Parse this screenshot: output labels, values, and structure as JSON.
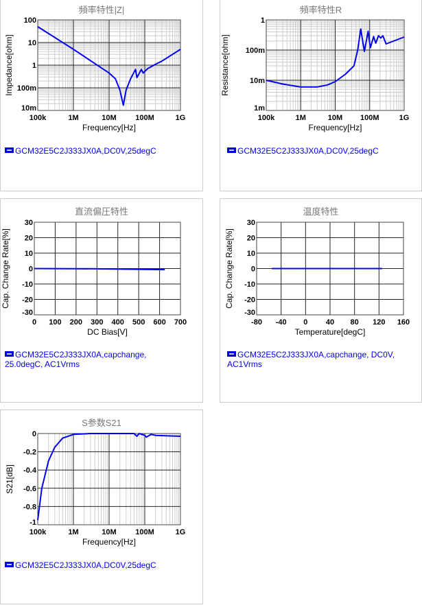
{
  "chart_data": [
    {
      "type": "line",
      "title": "頻率特性|Z|",
      "xlabel": "Frequency[Hz]",
      "ylabel": "Impedance[ohm]",
      "xscale": "log",
      "yscale": "log",
      "xlim": [
        100000,
        1000000000
      ],
      "ylim": [
        0.01,
        100
      ],
      "xticks": [
        "100k",
        "1M",
        "10M",
        "100M",
        "1G"
      ],
      "yticks": [
        "10m",
        "100m",
        "1",
        "10",
        "100"
      ],
      "series": [
        {
          "name": "GCM32E5C2J333JX0A,DC0V,25degC",
          "color": "#0000ee",
          "x": [
            100000.0,
            1000000.0,
            10000000.0,
            15000000.0,
            20000000.0,
            25000000.0,
            30000000.0,
            40000000.0,
            55000000.0,
            60000000.0,
            80000000.0,
            90000000.0,
            120000000.0,
            150000000.0,
            200000000.0,
            300000000.0,
            1000000000.0
          ],
          "y": [
            50,
            5,
            0.45,
            0.25,
            0.08,
            0.017,
            0.08,
            0.25,
            0.65,
            0.28,
            0.65,
            0.45,
            0.7,
            0.85,
            1.1,
            1.5,
            5
          ]
        }
      ],
      "legend": "GCM32E5C2J333JX0A,DC0V,25degC"
    },
    {
      "type": "line",
      "title": "頻率特性R",
      "xlabel": "Frequency[Hz]",
      "ylabel": "Resistance[ohm]",
      "xscale": "log",
      "yscale": "log",
      "xlim": [
        100000,
        1000000000
      ],
      "ylim": [
        0.001,
        1
      ],
      "xticks": [
        "100k",
        "1M",
        "10M",
        "100M",
        "1G"
      ],
      "yticks": [
        "1m",
        "10m",
        "100m",
        "1"
      ],
      "series": [
        {
          "name": "GCM32E5C2J333JX0A,DC0V,25degC",
          "color": "#0000ee",
          "x": [
            100000.0,
            300000.0,
            1000000.0,
            3000000.0,
            6000000.0,
            10000000.0,
            20000000.0,
            35000000.0,
            45000000.0,
            55000000.0,
            70000000.0,
            90000000.0,
            105000000.0,
            130000000.0,
            150000000.0,
            180000000.0,
            210000000.0,
            240000000.0,
            300000000.0,
            1000000000.0
          ],
          "y": [
            0.01,
            0.0075,
            0.006,
            0.006,
            0.007,
            0.009,
            0.016,
            0.03,
            0.1,
            0.5,
            0.09,
            0.42,
            0.12,
            0.28,
            0.17,
            0.3,
            0.25,
            0.3,
            0.16,
            0.27
          ]
        }
      ],
      "legend": "GCM32E5C2J333JX0A,DC0V,25degC"
    },
    {
      "type": "line",
      "title": "直流偏圧特性",
      "xlabel": "DC Bias[V]",
      "ylabel": "Cap. Change Rate[%]",
      "xscale": "linear",
      "yscale": "linear",
      "xlim": [
        0,
        700
      ],
      "ylim": [
        -30,
        30
      ],
      "xticks": [
        "0",
        "100",
        "200",
        "300",
        "400",
        "500",
        "600",
        "700"
      ],
      "yticks": [
        "-30",
        "-20",
        "-10",
        "0",
        "10",
        "20",
        "30"
      ],
      "series": [
        {
          "name": "GCM32E5C2J333JX0A,capchange, 25.0degC, AC1Vrms",
          "color": "#0000ee",
          "x": [
            0,
            100,
            200,
            300,
            400,
            500,
            625
          ],
          "y": [
            0,
            -0.05,
            -0.1,
            -0.2,
            -0.35,
            -0.5,
            -0.7
          ]
        }
      ],
      "legend": "GCM32E5C2J333JX0A,capchange, 25.0degC, AC1Vrms"
    },
    {
      "type": "line",
      "title": "温度特性",
      "xlabel": "Temperature[degC]",
      "ylabel": "Cap. Change Rate[%]",
      "xscale": "linear",
      "yscale": "linear",
      "xlim": [
        -80,
        160
      ],
      "ylim": [
        -30,
        30
      ],
      "xticks": [
        "-80",
        "-40",
        "0",
        "40",
        "80",
        "120",
        "160"
      ],
      "yticks": [
        "-30",
        "-20",
        "-10",
        "0",
        "10",
        "20",
        "30"
      ],
      "series": [
        {
          "name": "GCM32E5C2J333JX0A,capchange, DC0V, AC1Vrms",
          "color": "#0000ee",
          "x": [
            -55,
            0,
            25,
            85,
            125
          ],
          "y": [
            0,
            0,
            0,
            0,
            0
          ]
        }
      ],
      "legend": "GCM32E5C2J333JX0A,capchange, DC0V, AC1Vrms"
    },
    {
      "type": "line",
      "title": "S参数S21",
      "xlabel": "Frequency[Hz]",
      "ylabel": "S21[dB]",
      "xscale": "log",
      "yscale": "linear",
      "xlim": [
        100000,
        1000000000
      ],
      "ylim": [
        -1,
        0
      ],
      "xticks": [
        "100k",
        "1M",
        "10M",
        "100M",
        "1G"
      ],
      "yticks": [
        "-1",
        "-0.8",
        "-0.6",
        "-0.4",
        "-0.2",
        "0"
      ],
      "series": [
        {
          "name": "GCM32E5C2J333JX0A,DC0V,25degC",
          "color": "#0000ee",
          "x": [
            100000.0,
            130000.0,
            200000.0,
            300000.0,
            500000.0,
            1000000.0,
            3000000.0,
            50000000.0,
            60000000.0,
            70000000.0,
            100000000.0,
            110000000.0,
            150000000.0,
            200000000.0,
            1000000000.0
          ],
          "y": [
            -0.95,
            -0.6,
            -0.3,
            -0.15,
            -0.05,
            -0.01,
            0,
            0,
            -0.03,
            0,
            -0.02,
            -0.04,
            -0.01,
            -0.02,
            -0.03
          ]
        }
      ],
      "legend": "GCM32E5C2J333JX0A,DC0V,25degC"
    }
  ]
}
